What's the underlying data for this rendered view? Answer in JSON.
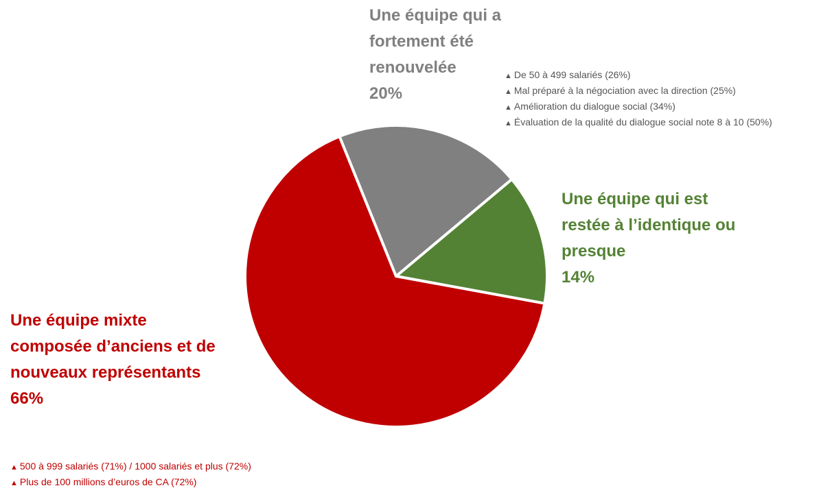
{
  "chart_data": {
    "type": "pie",
    "categories": [
      "Une équipe qui est restée à l’identique ou presque",
      "Une équipe mixte composée d’anciens et de nouveaux représentants",
      "Une équipe qui a fortement été renouvelée"
    ],
    "values": [
      14,
      66,
      20
    ],
    "value_labels": [
      "14%",
      "66%",
      "20%"
    ],
    "colors": [
      "#548235",
      "#c00000",
      "#808080"
    ],
    "notes": [
      [
        "500 à 999 salariés (71%) / 1000 salariés et plus (72%)",
        "Plus de 100 millions d’euros de CA (72%)"
      ],
      [
        "De 50 à 499 salariés (26%)",
        "Mal préparé à la négociation avec la direction (25%)",
        "Amélioration du dialogue social (34%)",
        "Évaluation de la qualité du dialogue social note 8 à 10 (50%)"
      ]
    ]
  }
}
